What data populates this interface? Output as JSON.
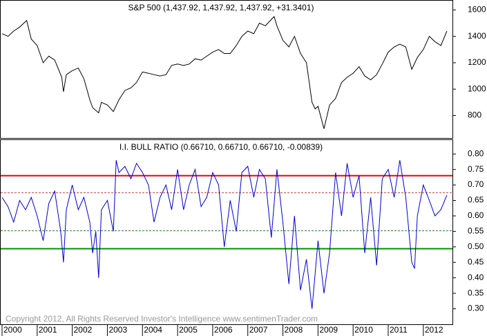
{
  "chart_data": [
    {
      "type": "line",
      "title": "S&P 500 (1,437.92, 1,437.92, 1,437.92, +31.3401)",
      "color": "#000000",
      "x": [
        2000,
        2000.17,
        2000.33,
        2000.5,
        2000.7,
        2000.83,
        2001,
        2001.17,
        2001.33,
        2001.5,
        2001.7,
        2001.75,
        2001.83,
        2002,
        2002.17,
        2002.33,
        2002.5,
        2002.58,
        2002.75,
        2002.83,
        2003,
        2003.17,
        2003.33,
        2003.5,
        2003.67,
        2003.83,
        2004,
        2004.17,
        2004.33,
        2004.5,
        2004.67,
        2004.83,
        2005,
        2005.17,
        2005.33,
        2005.5,
        2005.67,
        2005.83,
        2006,
        2006.17,
        2006.33,
        2006.5,
        2006.67,
        2006.83,
        2007,
        2007.17,
        2007.33,
        2007.5,
        2007.75,
        2007.83,
        2008,
        2008.17,
        2008.33,
        2008.5,
        2008.67,
        2008.83,
        2008.92,
        2009,
        2009.17,
        2009.33,
        2009.5,
        2009.67,
        2009.83,
        2010,
        2010.17,
        2010.33,
        2010.5,
        2010.67,
        2010.83,
        2011,
        2011.17,
        2011.33,
        2011.5,
        2011.67,
        2011.83,
        2012,
        2012.17,
        2012.33,
        2012.5,
        2012.67
      ],
      "values": [
        1420,
        1400,
        1440,
        1470,
        1520,
        1380,
        1330,
        1200,
        1250,
        1220,
        1090,
        980,
        1110,
        1140,
        1160,
        1080,
        920,
        860,
        820,
        900,
        880,
        830,
        920,
        990,
        1010,
        1050,
        1130,
        1120,
        1110,
        1100,
        1110,
        1180,
        1190,
        1180,
        1190,
        1230,
        1220,
        1250,
        1280,
        1300,
        1270,
        1270,
        1330,
        1400,
        1440,
        1420,
        1500,
        1480,
        1550,
        1480,
        1370,
        1320,
        1400,
        1270,
        1200,
        900,
        850,
        870,
        700,
        880,
        930,
        1050,
        1090,
        1120,
        1170,
        1100,
        1070,
        1110,
        1190,
        1280,
        1320,
        1340,
        1320,
        1150,
        1240,
        1300,
        1400,
        1360,
        1330,
        1440
      ],
      "xlim": [
        2000,
        2012.83
      ],
      "ylim": [
        630,
        1670
      ],
      "yticks": [
        800,
        1000,
        1200,
        1400,
        1600
      ]
    },
    {
      "type": "line",
      "title": "I.I. BULL RATIO (0.66710, 0.66710, 0.66710, -0.00839)",
      "color": "#0000cc",
      "x": [
        2000,
        2000.17,
        2000.33,
        2000.5,
        2000.67,
        2000.83,
        2001,
        2001.17,
        2001.33,
        2001.5,
        2001.67,
        2001.75,
        2001.83,
        2002,
        2002.17,
        2002.33,
        2002.5,
        2002.58,
        2002.67,
        2002.75,
        2002.83,
        2003,
        2003.17,
        2003.25,
        2003.33,
        2003.5,
        2003.67,
        2003.83,
        2004,
        2004.17,
        2004.33,
        2004.5,
        2004.67,
        2004.83,
        2005,
        2005.17,
        2005.33,
        2005.5,
        2005.67,
        2005.83,
        2006,
        2006.17,
        2006.33,
        2006.5,
        2006.67,
        2006.83,
        2007,
        2007.17,
        2007.33,
        2007.5,
        2007.67,
        2007.83,
        2008,
        2008.17,
        2008.33,
        2008.5,
        2008.67,
        2008.83,
        2009,
        2009.17,
        2009.33,
        2009.5,
        2009.67,
        2009.83,
        2010,
        2010.17,
        2010.33,
        2010.5,
        2010.67,
        2010.83,
        2011,
        2011.17,
        2011.33,
        2011.5,
        2011.67,
        2011.75,
        2011.83,
        2012,
        2012.17,
        2012.33,
        2012.5,
        2012.67
      ],
      "values": [
        0.66,
        0.63,
        0.58,
        0.65,
        0.62,
        0.66,
        0.6,
        0.52,
        0.64,
        0.68,
        0.55,
        0.45,
        0.62,
        0.7,
        0.62,
        0.66,
        0.58,
        0.48,
        0.55,
        0.4,
        0.62,
        0.65,
        0.55,
        0.78,
        0.74,
        0.76,
        0.72,
        0.77,
        0.74,
        0.7,
        0.58,
        0.66,
        0.7,
        0.62,
        0.75,
        0.62,
        0.7,
        0.75,
        0.63,
        0.66,
        0.74,
        0.7,
        0.5,
        0.65,
        0.55,
        0.74,
        0.76,
        0.66,
        0.75,
        0.72,
        0.53,
        0.75,
        0.58,
        0.38,
        0.6,
        0.36,
        0.46,
        0.3,
        0.52,
        0.35,
        0.48,
        0.74,
        0.6,
        0.77,
        0.66,
        0.73,
        0.48,
        0.66,
        0.44,
        0.72,
        0.75,
        0.66,
        0.78,
        0.66,
        0.45,
        0.43,
        0.6,
        0.7,
        0.65,
        0.6,
        0.62,
        0.6671
      ],
      "xlim": [
        2000,
        2012.83
      ],
      "ylim": [
        0.25,
        0.845
      ],
      "yticks": [
        {
          "value": 0.3,
          "label": "0.30"
        },
        {
          "value": 0.35,
          "label": "0.35"
        },
        {
          "value": 0.4,
          "label": "0.40"
        },
        {
          "value": 0.45,
          "label": "0.45"
        },
        {
          "value": 0.5,
          "label": "0.50"
        },
        {
          "value": 0.55,
          "label": "0.55"
        },
        {
          "value": 0.6,
          "label": "0.60"
        },
        {
          "value": 0.65,
          "label": "0.65"
        },
        {
          "value": 0.7,
          "label": "0.70"
        },
        {
          "value": 0.75,
          "label": "0.75"
        },
        {
          "value": 0.8,
          "label": "0.80"
        }
      ],
      "xticks": [
        2000,
        2001,
        2002,
        2003,
        2004,
        2005,
        2006,
        2007,
        2008,
        2009,
        2010,
        2011,
        2012
      ],
      "reference_lines": [
        {
          "value": 0.73,
          "color": "#e00000",
          "style": "solid"
        },
        {
          "value": 0.675,
          "color": "#c03030",
          "style": "dashed"
        },
        {
          "value": 0.552,
          "color": "#208020",
          "style": "dashed"
        },
        {
          "value": 0.494,
          "color": "#009000",
          "style": "solid"
        }
      ],
      "annotation": "Copyright 2012, All Rights Reserved  Investor's Intelligence  www.sentimenTrader.com"
    }
  ]
}
